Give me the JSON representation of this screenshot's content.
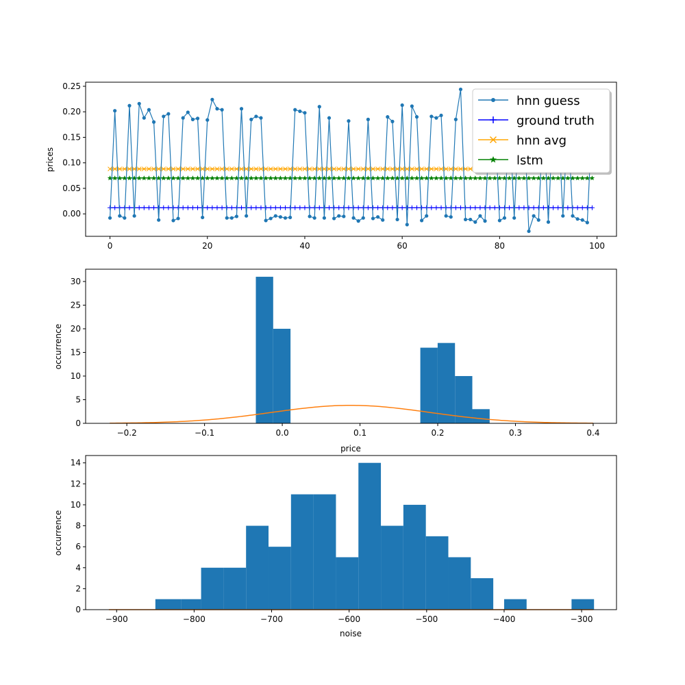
{
  "chart_data": [
    {
      "type": "line",
      "title": "",
      "xlabel": "",
      "ylabel": "prices",
      "xlim": [
        -5,
        104
      ],
      "ylim": [
        -0.044,
        0.258
      ],
      "xticks": [
        0,
        20,
        40,
        60,
        80,
        100
      ],
      "yticks": [
        0.0,
        0.05,
        0.1,
        0.15,
        0.2,
        0.25
      ],
      "ytick_labels": [
        "0.00",
        "0.05",
        "0.10",
        "0.15",
        "0.20",
        "0.25"
      ],
      "grid": false,
      "legend": "top-right",
      "x": [
        0,
        1,
        2,
        3,
        4,
        5,
        6,
        7,
        8,
        9,
        10,
        11,
        12,
        13,
        14,
        15,
        16,
        17,
        18,
        19,
        20,
        21,
        22,
        23,
        24,
        25,
        26,
        27,
        28,
        29,
        30,
        31,
        32,
        33,
        34,
        35,
        36,
        37,
        38,
        39,
        40,
        41,
        42,
        43,
        44,
        45,
        46,
        47,
        48,
        49,
        50,
        51,
        52,
        53,
        54,
        55,
        56,
        57,
        58,
        59,
        60,
        61,
        62,
        63,
        64,
        65,
        66,
        67,
        68,
        69,
        70,
        71,
        72,
        73,
        74,
        75,
        76,
        77,
        78,
        79,
        80,
        81,
        82,
        83,
        84,
        85,
        86,
        87,
        88,
        89,
        90,
        91,
        92,
        93,
        94,
        95,
        96,
        97,
        98,
        99
      ],
      "series": [
        {
          "name": "hnn guess",
          "color": "#1f77b4",
          "marker": "circle",
          "values": [
            -0.008,
            0.202,
            -0.004,
            -0.008,
            0.212,
            -0.004,
            0.216,
            0.188,
            0.204,
            0.18,
            -0.012,
            0.191,
            0.196,
            -0.013,
            -0.009,
            0.188,
            0.199,
            0.185,
            0.187,
            -0.007,
            0.184,
            0.224,
            0.206,
            0.204,
            -0.008,
            -0.008,
            -0.005,
            0.206,
            -0.004,
            0.185,
            0.191,
            0.188,
            -0.013,
            -0.009,
            -0.004,
            -0.006,
            -0.008,
            -0.007,
            0.204,
            0.201,
            0.198,
            -0.005,
            -0.008,
            0.21,
            -0.008,
            0.188,
            -0.009,
            -0.004,
            -0.005,
            0.182,
            -0.008,
            -0.014,
            -0.008,
            0.185,
            -0.009,
            -0.006,
            -0.012,
            0.19,
            0.181,
            -0.011,
            0.213,
            -0.021,
            0.211,
            0.19,
            -0.013,
            -0.004,
            0.191,
            0.188,
            0.193,
            -0.004,
            -0.006,
            0.185,
            0.244,
            -0.011,
            -0.011,
            -0.016,
            -0.004,
            -0.014,
            0.184,
            0.19,
            -0.013,
            -0.008,
            0.197,
            -0.008,
            0.196,
            0.195,
            -0.034,
            -0.004,
            -0.012,
            0.199,
            -0.016,
            0.195,
            0.19,
            -0.004,
            0.186,
            -0.004,
            -0.01,
            -0.012,
            -0.017,
            0.19
          ]
        },
        {
          "name": "ground truth",
          "color": "#0000ff",
          "marker": "plus",
          "values": [
            0.012,
            0.012,
            0.012,
            0.012,
            0.012,
            0.012,
            0.012,
            0.012,
            0.012,
            0.012,
            0.012,
            0.012,
            0.012,
            0.012,
            0.012,
            0.012,
            0.012,
            0.012,
            0.012,
            0.012,
            0.012,
            0.012,
            0.012,
            0.012,
            0.012,
            0.012,
            0.012,
            0.012,
            0.012,
            0.012,
            0.012,
            0.012,
            0.012,
            0.012,
            0.012,
            0.012,
            0.012,
            0.012,
            0.012,
            0.012,
            0.012,
            0.012,
            0.012,
            0.012,
            0.012,
            0.012,
            0.012,
            0.012,
            0.012,
            0.012,
            0.012,
            0.012,
            0.012,
            0.012,
            0.012,
            0.012,
            0.012,
            0.012,
            0.012,
            0.012,
            0.012,
            0.012,
            0.012,
            0.012,
            0.012,
            0.012,
            0.012,
            0.012,
            0.012,
            0.012,
            0.012,
            0.012,
            0.012,
            0.012,
            0.012,
            0.012,
            0.012,
            0.012,
            0.012,
            0.012,
            0.012,
            0.012,
            0.012,
            0.012,
            0.012,
            0.012,
            0.012,
            0.012,
            0.012,
            0.012,
            0.012,
            0.012,
            0.012,
            0.012,
            0.012,
            0.012,
            0.012,
            0.012,
            0.012,
            0.012
          ]
        },
        {
          "name": "hnn avg",
          "color": "#ffa500",
          "marker": "x",
          "values": [
            0.088,
            0.088,
            0.088,
            0.088,
            0.088,
            0.088,
            0.088,
            0.088,
            0.088,
            0.088,
            0.088,
            0.088,
            0.088,
            0.088,
            0.088,
            0.088,
            0.088,
            0.088,
            0.088,
            0.088,
            0.088,
            0.088,
            0.088,
            0.088,
            0.088,
            0.088,
            0.088,
            0.088,
            0.088,
            0.088,
            0.088,
            0.088,
            0.088,
            0.088,
            0.088,
            0.088,
            0.088,
            0.088,
            0.088,
            0.088,
            0.088,
            0.088,
            0.088,
            0.088,
            0.088,
            0.088,
            0.088,
            0.088,
            0.088,
            0.088,
            0.088,
            0.088,
            0.088,
            0.088,
            0.088,
            0.088,
            0.088,
            0.088,
            0.088,
            0.088,
            0.088,
            0.088,
            0.088,
            0.088,
            0.088,
            0.088,
            0.088,
            0.088,
            0.088,
            0.088,
            0.088,
            0.088,
            0.088,
            0.088,
            0.088,
            0.088,
            0.088,
            0.088,
            0.088,
            0.088,
            0.088,
            0.088,
            0.088,
            0.088,
            0.088,
            0.088,
            0.088,
            0.088,
            0.088,
            0.088,
            0.088,
            0.088,
            0.088,
            0.088,
            0.088,
            0.088,
            0.088,
            0.088,
            0.088,
            0.088
          ]
        },
        {
          "name": "lstm",
          "color": "#008000",
          "marker": "star",
          "values": [
            0.07,
            0.07,
            0.07,
            0.07,
            0.07,
            0.07,
            0.07,
            0.07,
            0.07,
            0.07,
            0.07,
            0.07,
            0.07,
            0.07,
            0.07,
            0.07,
            0.07,
            0.07,
            0.07,
            0.07,
            0.07,
            0.07,
            0.07,
            0.07,
            0.07,
            0.07,
            0.07,
            0.07,
            0.07,
            0.07,
            0.07,
            0.07,
            0.07,
            0.07,
            0.07,
            0.07,
            0.07,
            0.07,
            0.07,
            0.07,
            0.07,
            0.07,
            0.07,
            0.07,
            0.07,
            0.07,
            0.07,
            0.07,
            0.07,
            0.07,
            0.07,
            0.07,
            0.07,
            0.07,
            0.07,
            0.07,
            0.07,
            0.07,
            0.07,
            0.07,
            0.07,
            0.07,
            0.07,
            0.07,
            0.07,
            0.07,
            0.07,
            0.07,
            0.07,
            0.07,
            0.07,
            0.07,
            0.07,
            0.07,
            0.07,
            0.07,
            0.07,
            0.07,
            0.07,
            0.07,
            0.07,
            0.07,
            0.07,
            0.07,
            0.07,
            0.07,
            0.07,
            0.07,
            0.07,
            0.07,
            0.07,
            0.07,
            0.07,
            0.07,
            0.07,
            0.07,
            0.07,
            0.07,
            0.07,
            0.07
          ]
        }
      ]
    },
    {
      "type": "bar",
      "title": "",
      "xlabel": "price",
      "ylabel": "occurrence",
      "xlim": [
        -0.253,
        0.43
      ],
      "ylim": [
        0,
        32.6
      ],
      "xticks": [
        -0.2,
        -0.1,
        0.0,
        0.1,
        0.2,
        0.3,
        0.4
      ],
      "xtick_labels": [
        "−0.2",
        "−0.1",
        "0.0",
        "0.1",
        "0.2",
        "0.3",
        "0.4"
      ],
      "yticks": [
        0,
        5,
        10,
        15,
        20,
        25,
        30
      ],
      "grid": false,
      "bar_color": "#1f77b4",
      "curve_color": "#ff7f0e",
      "bins": [
        {
          "start": -0.034,
          "end": -0.0117,
          "count": 31
        },
        {
          "start": -0.0117,
          "end": 0.0106,
          "count": 20
        },
        {
          "start": 0.1776,
          "end": 0.1999,
          "count": 16
        },
        {
          "start": 0.1999,
          "end": 0.2222,
          "count": 17
        },
        {
          "start": 0.2222,
          "end": 0.2445,
          "count": 10
        },
        {
          "start": 0.2445,
          "end": 0.2668,
          "count": 3
        }
      ],
      "curve": {
        "x_start": -0.222,
        "x_end": 0.4,
        "mean": 0.088,
        "peak": 3.8,
        "sigma": 0.102
      }
    },
    {
      "type": "bar",
      "title": "",
      "xlabel": "noise",
      "ylabel": "occurrence",
      "xlim": [
        -940,
        -255
      ],
      "ylim": [
        0,
        14.7
      ],
      "xticks": [
        -900,
        -800,
        -700,
        -600,
        -500,
        -400,
        -300
      ],
      "xtick_labels": [
        "−900",
        "−800",
        "−700",
        "−600",
        "−500",
        "−400",
        "−300"
      ],
      "yticks": [
        0,
        2,
        4,
        6,
        8,
        10,
        12,
        14
      ],
      "grid": false,
      "bar_color": "#1f77b4",
      "curve_color": "#ff7f0e",
      "bins": [
        {
          "start": -850,
          "end": -817,
          "count": 1
        },
        {
          "start": -817,
          "end": -791,
          "count": 1
        },
        {
          "start": -791,
          "end": -762,
          "count": 4
        },
        {
          "start": -762,
          "end": -733,
          "count": 4
        },
        {
          "start": -733,
          "end": -704,
          "count": 8
        },
        {
          "start": -704,
          "end": -675,
          "count": 6
        },
        {
          "start": -675,
          "end": -646,
          "count": 11
        },
        {
          "start": -646,
          "end": -617,
          "count": 11
        },
        {
          "start": -617,
          "end": -588,
          "count": 5
        },
        {
          "start": -588,
          "end": -559,
          "count": 14
        },
        {
          "start": -559,
          "end": -530,
          "count": 8
        },
        {
          "start": -530,
          "end": -501,
          "count": 10
        },
        {
          "start": -501,
          "end": -472,
          "count": 7
        },
        {
          "start": -472,
          "end": -443,
          "count": 5
        },
        {
          "start": -443,
          "end": -414,
          "count": 3
        },
        {
          "start": -400,
          "end": -371,
          "count": 1
        },
        {
          "start": -313,
          "end": -284,
          "count": 1
        }
      ],
      "curve": {
        "x_start": -910,
        "x_end": -285,
        "flat_value": 0
      }
    }
  ],
  "legend": {
    "items": [
      {
        "label": "hnn guess",
        "color": "#1f77b4",
        "marker": "circle"
      },
      {
        "label": "ground truth",
        "color": "#0000ff",
        "marker": "plus"
      },
      {
        "label": "hnn avg",
        "color": "#ffa500",
        "marker": "x"
      },
      {
        "label": "lstm",
        "color": "#008000",
        "marker": "star"
      }
    ]
  }
}
